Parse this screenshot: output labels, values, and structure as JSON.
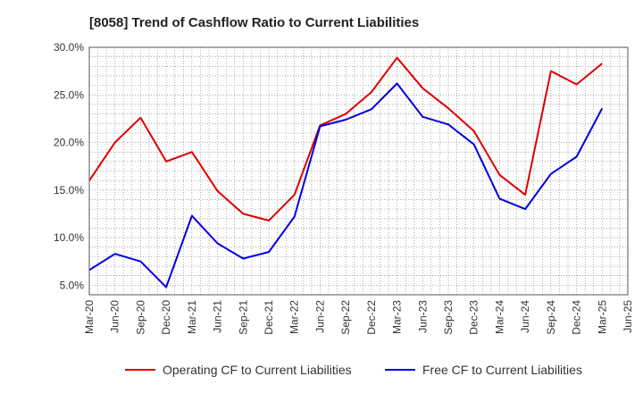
{
  "chart_data": {
    "type": "line",
    "title": "[8058]  Trend of Cashflow Ratio to Current Liabilities",
    "xlabel": "",
    "ylabel": "",
    "x": [
      "Mar-20",
      "Jun-20",
      "Sep-20",
      "Dec-20",
      "Mar-21",
      "Jun-21",
      "Sep-21",
      "Dec-21",
      "Mar-22",
      "Jun-22",
      "Sep-22",
      "Dec-22",
      "Mar-23",
      "Jun-23",
      "Sep-23",
      "Dec-23",
      "Mar-24",
      "Jun-24",
      "Sep-24",
      "Dec-24",
      "Mar-25"
    ],
    "xtick_labels": [
      "Mar-20",
      "Jun-20",
      "Sep-20",
      "Dec-20",
      "Mar-21",
      "Jun-21",
      "Sep-21",
      "Dec-21",
      "Mar-22",
      "Jun-22",
      "Sep-22",
      "Dec-22",
      "Mar-23",
      "Jun-23",
      "Sep-23",
      "Dec-23",
      "Mar-24",
      "Jun-24",
      "Sep-24",
      "Dec-24",
      "Mar-25",
      "Jun-25"
    ],
    "yticks": [
      "5.0%",
      "10.0%",
      "15.0%",
      "20.0%",
      "25.0%",
      "30.0%"
    ],
    "ylim": [
      4.0,
      30.0
    ],
    "grid": true,
    "legend_position": "bottom",
    "series": [
      {
        "name": "Operating CF to Current Liabilities",
        "color": "#dd0000",
        "values": [
          16.0,
          20.0,
          22.6,
          18.0,
          19.0,
          14.9,
          12.5,
          11.8,
          14.5,
          21.8,
          23.0,
          25.3,
          28.9,
          25.7,
          23.6,
          21.2,
          16.6,
          14.5,
          27.5,
          26.1,
          28.3
        ]
      },
      {
        "name": "Free CF to Current Liabilities",
        "color": "#0000dd",
        "values": [
          6.6,
          8.3,
          7.5,
          4.8,
          12.3,
          9.4,
          7.8,
          8.5,
          12.2,
          21.7,
          22.4,
          23.5,
          26.2,
          22.7,
          21.9,
          19.8,
          14.1,
          13.0,
          16.7,
          18.5,
          23.6
        ]
      }
    ]
  }
}
